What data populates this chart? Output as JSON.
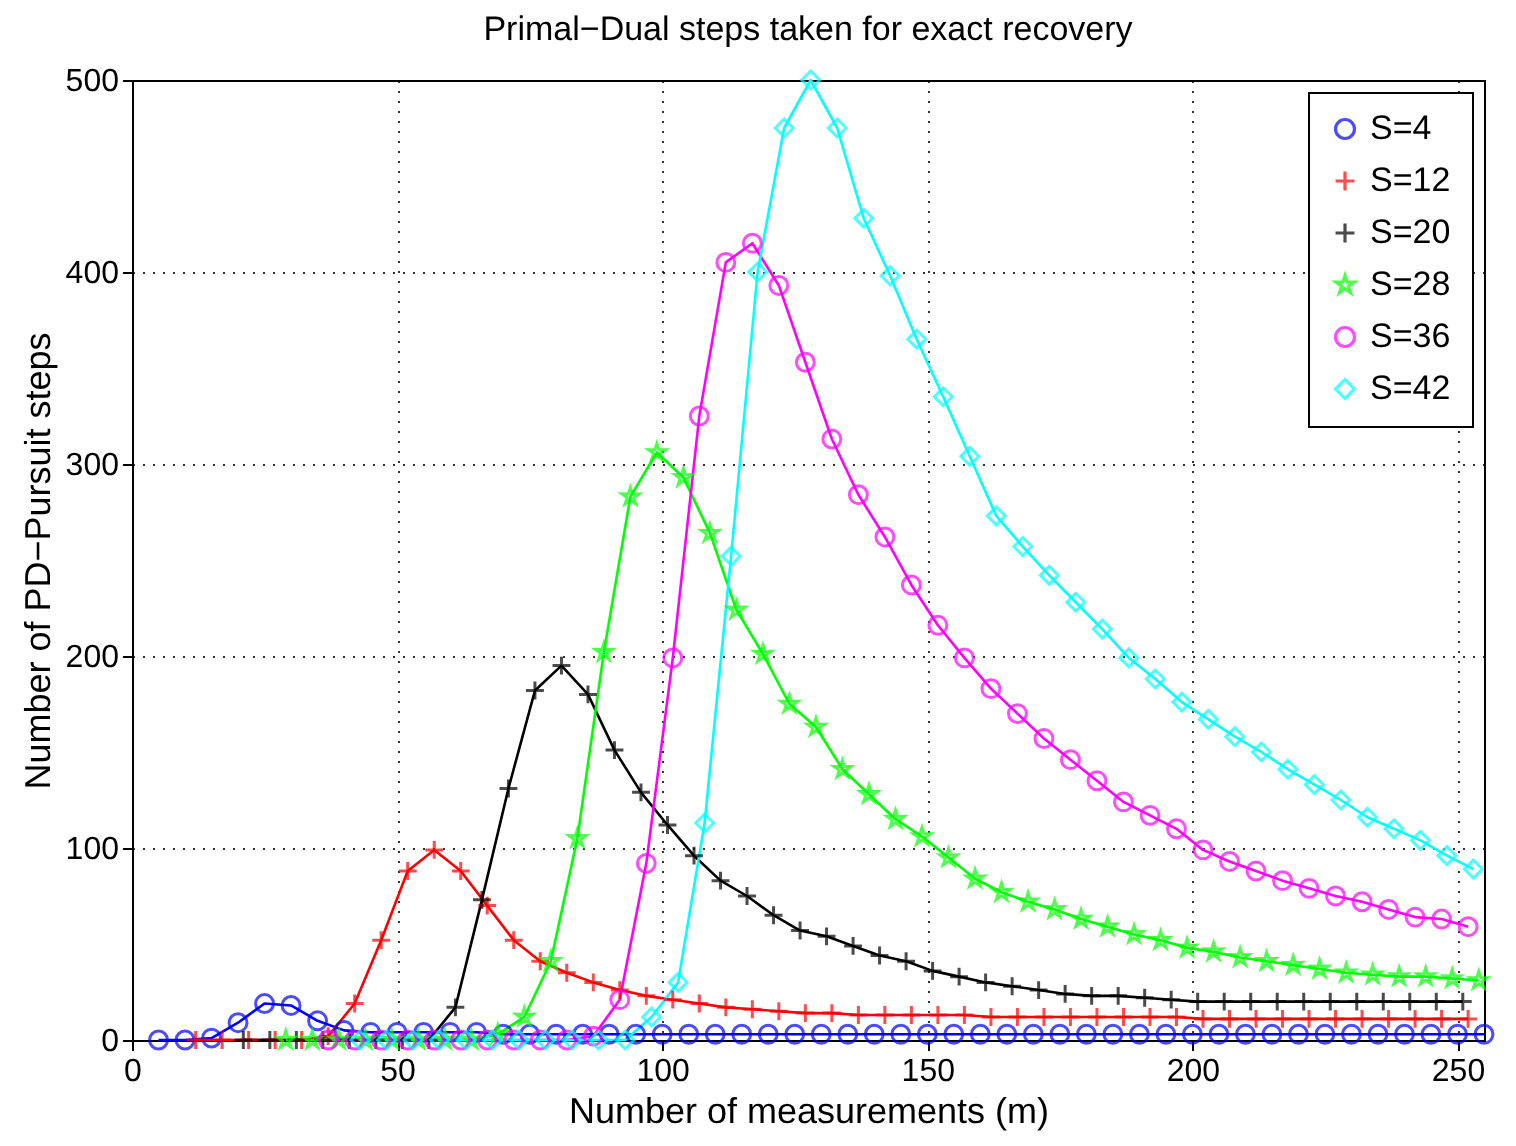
{
  "chart_data": {
    "type": "line",
    "title": "Primal−Dual steps taken for exact recovery",
    "xlabel": "Number of measurements (m)",
    "ylabel": "Number of PD−Pursuit steps",
    "xlim": [
      0,
      255
    ],
    "ylim": [
      0,
      500
    ],
    "xticks": [
      0,
      50,
      100,
      150,
      200,
      250
    ],
    "yticks": [
      0,
      100,
      200,
      300,
      400,
      500
    ],
    "grid": true,
    "legend": "top right",
    "line_style": "solid",
    "series": [
      {
        "name": "S=4",
        "color": "#0000ff",
        "marker": "circle",
        "x": [
          5,
          10,
          15,
          20,
          25,
          30,
          35,
          40,
          45,
          50,
          55,
          60,
          65,
          70,
          75,
          80,
          85,
          90,
          95,
          100,
          105,
          110,
          115,
          120,
          125,
          130,
          135,
          140,
          145,
          150,
          155,
          160,
          165,
          170,
          175,
          180,
          185,
          190,
          195,
          200,
          205,
          210,
          215,
          220,
          225,
          230,
          235,
          240,
          245,
          250,
          255
        ],
        "values": [
          0,
          0,
          1,
          9,
          19,
          18,
          10,
          5,
          4,
          4,
          4,
          4,
          4,
          3,
          3,
          3,
          3,
          3,
          3,
          3,
          3,
          3,
          3,
          3,
          3,
          3,
          3,
          3,
          3,
          3,
          3,
          3,
          3,
          3,
          3,
          3,
          3,
          3,
          3,
          3,
          3,
          3,
          3,
          3,
          3,
          3,
          3,
          3,
          3,
          3,
          3
        ]
      },
      {
        "name": "S=12",
        "color": "#ff0000",
        "marker": "cross",
        "x": [
          12,
          17,
          22,
          27,
          32,
          37,
          42,
          47,
          52,
          57,
          62,
          67,
          72,
          77,
          82,
          87,
          92,
          97,
          102,
          107,
          112,
          117,
          122,
          127,
          132,
          137,
          142,
          147,
          152,
          157,
          162,
          167,
          172,
          177,
          182,
          187,
          192,
          197,
          202,
          207,
          212,
          217,
          222,
          227,
          232,
          237,
          242,
          247,
          252
        ],
        "values": [
          0,
          0,
          0,
          0,
          0,
          2,
          19,
          52,
          88,
          99,
          88,
          70,
          52,
          41,
          35,
          30,
          26,
          23,
          21,
          19,
          17,
          16,
          15,
          14,
          14,
          13,
          13,
          13,
          13,
          13,
          12,
          12,
          12,
          12,
          12,
          12,
          12,
          12,
          11,
          11,
          11,
          11,
          11,
          11,
          11,
          11,
          11,
          11,
          11
        ]
      },
      {
        "name": "S=20",
        "color": "#000000",
        "marker": "cross",
        "x": [
          21,
          26,
          31,
          36,
          41,
          46,
          51,
          56,
          61,
          66,
          71,
          76,
          81,
          86,
          91,
          96,
          101,
          106,
          111,
          116,
          121,
          126,
          131,
          136,
          141,
          146,
          151,
          156,
          161,
          166,
          171,
          176,
          181,
          186,
          191,
          196,
          201,
          206,
          211,
          216,
          221,
          226,
          231,
          236,
          241,
          246,
          251
        ],
        "values": [
          0,
          0,
          0,
          0,
          0,
          0,
          0,
          0,
          17,
          73,
          131,
          182,
          195,
          180,
          151,
          129,
          112,
          96,
          83,
          75,
          65,
          57,
          54,
          49,
          44,
          41,
          36,
          33,
          30,
          28,
          26,
          24,
          23,
          23,
          22,
          21,
          20,
          20,
          20,
          20,
          20,
          20,
          20,
          20,
          20,
          20,
          20
        ]
      },
      {
        "name": "S=28",
        "color": "#00ff00",
        "marker": "star",
        "x": [
          29,
          34,
          39,
          44,
          49,
          54,
          59,
          64,
          69,
          74,
          79,
          84,
          89,
          94,
          99,
          104,
          109,
          114,
          119,
          124,
          129,
          134,
          139,
          144,
          149,
          154,
          159,
          164,
          169,
          174,
          179,
          184,
          189,
          194,
          199,
          204,
          209,
          214,
          219,
          224,
          229,
          234,
          239,
          244,
          249,
          254
        ],
        "values": [
          0,
          0,
          0,
          0,
          0,
          0,
          0,
          0,
          3,
          12,
          41,
          105,
          202,
          283,
          306,
          293,
          264,
          224,
          201,
          175,
          163,
          141,
          128,
          115,
          106,
          95,
          84,
          77,
          72,
          68,
          63,
          59,
          55,
          52,
          48,
          46,
          43,
          41,
          39,
          37,
          35,
          34,
          33,
          33,
          32,
          31
        ]
      },
      {
        "name": "S=36",
        "color": "#ff00ff",
        "marker": "circle",
        "x": [
          37,
          42,
          47,
          52,
          57,
          62,
          67,
          72,
          77,
          82,
          87,
          92,
          97,
          102,
          107,
          112,
          117,
          122,
          127,
          132,
          137,
          142,
          147,
          152,
          157,
          162,
          167,
          172,
          177,
          182,
          187,
          192,
          197,
          202,
          207,
          212,
          217,
          222,
          227,
          232,
          237,
          242,
          247,
          252
        ],
        "values": [
          0,
          0,
          0,
          0,
          0,
          0,
          0,
          0,
          0,
          0,
          2,
          21,
          92,
          199,
          325,
          405,
          415,
          393,
          353,
          313,
          284,
          262,
          237,
          216,
          199,
          183,
          170,
          157,
          146,
          135,
          124,
          117,
          110,
          99,
          93,
          88,
          83,
          79,
          75,
          72,
          68,
          64,
          63,
          59
        ]
      },
      {
        "name": "S=42",
        "color": "#00ffff",
        "marker": "diamond",
        "x": [
          43,
          48,
          53,
          58,
          63,
          68,
          73,
          78,
          83,
          88,
          93,
          98,
          103,
          108,
          113,
          118,
          123,
          128,
          133,
          138,
          143,
          148,
          153,
          158,
          163,
          168,
          173,
          178,
          183,
          188,
          193,
          198,
          203,
          208,
          213,
          218,
          223,
          228,
          233,
          238,
          243,
          248,
          253
        ],
        "values": [
          0,
          0,
          0,
          0,
          0,
          0,
          0,
          0,
          0,
          0,
          0,
          12,
          30,
          113,
          252,
          400,
          475,
          500,
          475,
          428,
          398,
          365,
          335,
          304,
          273,
          257,
          242,
          228,
          214,
          199,
          188,
          176,
          167,
          158,
          150,
          141,
          133,
          125,
          116,
          110,
          104,
          96,
          89
        ]
      }
    ]
  }
}
